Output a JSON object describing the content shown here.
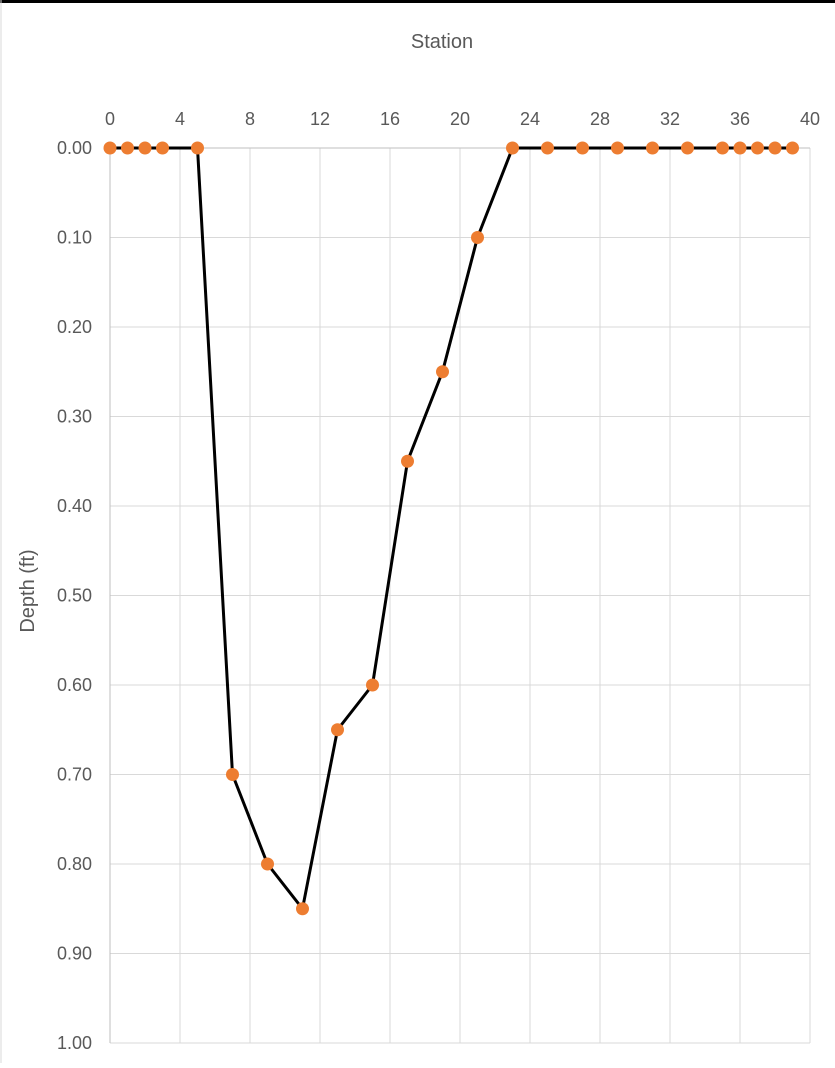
{
  "chart_data": {
    "type": "line",
    "title": "",
    "xlabel": "Station",
    "ylabel": "Depth (ft)",
    "xlim": [
      0,
      40
    ],
    "ylim": [
      0,
      1.0
    ],
    "x_axis_position": "top",
    "y_axis_inverted": true,
    "x_ticks": [
      "0",
      "4",
      "8",
      "12",
      "16",
      "20",
      "24",
      "28",
      "32",
      "36",
      "40"
    ],
    "y_ticks": [
      "0.00",
      "0.10",
      "0.20",
      "0.30",
      "0.40",
      "0.50",
      "0.60",
      "0.70",
      "0.80",
      "0.90",
      "1.00"
    ],
    "grid": true,
    "line_color": "#000000",
    "marker_color": "#ED7D31",
    "grid_color": "#D9D9D9",
    "series": [
      {
        "x": [
          0,
          1,
          2,
          3,
          5,
          7,
          9,
          11,
          13,
          15,
          17,
          19,
          21,
          23,
          25,
          27,
          29,
          31,
          33,
          35,
          36,
          37,
          38,
          39
        ],
        "y": [
          0,
          0,
          0,
          0,
          0,
          0.7,
          0.8,
          0.85,
          0.65,
          0.6,
          0.35,
          0.25,
          0.1,
          0,
          0,
          0,
          0,
          0,
          0,
          0,
          0,
          0,
          0,
          0
        ]
      }
    ]
  }
}
